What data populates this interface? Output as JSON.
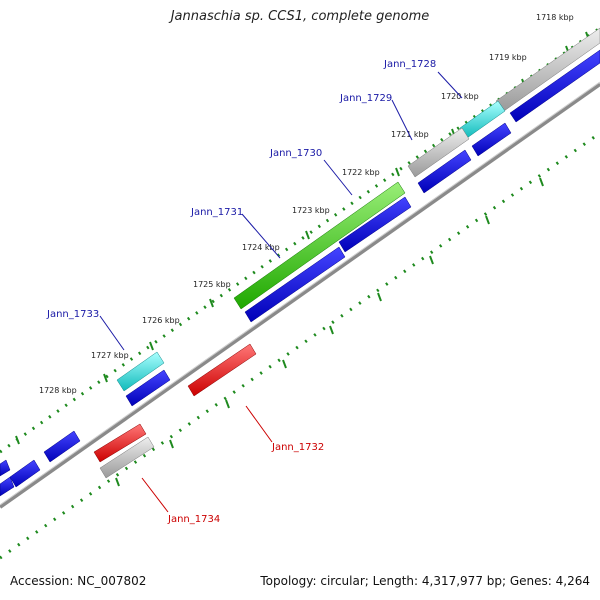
{
  "title": "Jannaschia sp. CCS1, complete genome",
  "footer": {
    "accession": "Accession: NC_007802",
    "summary": "Topology: circular; Length: 4,317,977 bp; Genes: 4,264"
  },
  "kbp_labels": [
    "1718 kbp",
    "1719 kbp",
    "1720 kbp",
    "1721 kbp",
    "1722 kbp",
    "1723 kbp",
    "1724 kbp",
    "1725 kbp",
    "1726 kbp",
    "1727 kbp",
    "1728 kbp"
  ],
  "genes": [
    {
      "name": "Jann_1728",
      "color": "#1a1aa6"
    },
    {
      "name": "Jann_1729",
      "color": "#1a1aa6"
    },
    {
      "name": "Jann_1730",
      "color": "#1a1aa6"
    },
    {
      "name": "Jann_1731",
      "color": "#1a1aa6"
    },
    {
      "name": "Jann_1733",
      "color": "#1a1aa6"
    },
    {
      "name": "Jann_1732",
      "color": "#cc0000"
    },
    {
      "name": "Jann_1734",
      "color": "#cc0000"
    }
  ],
  "colors": {
    "cds_blue": "#0000e0",
    "gene_gray": "#b8b8b8",
    "gene_green": "#33cc11",
    "gene_cyan": "#22dddd",
    "gene_red": "#ee0000",
    "backbone": "#8a8a8a",
    "gc_dots": "#1e8a1e"
  }
}
